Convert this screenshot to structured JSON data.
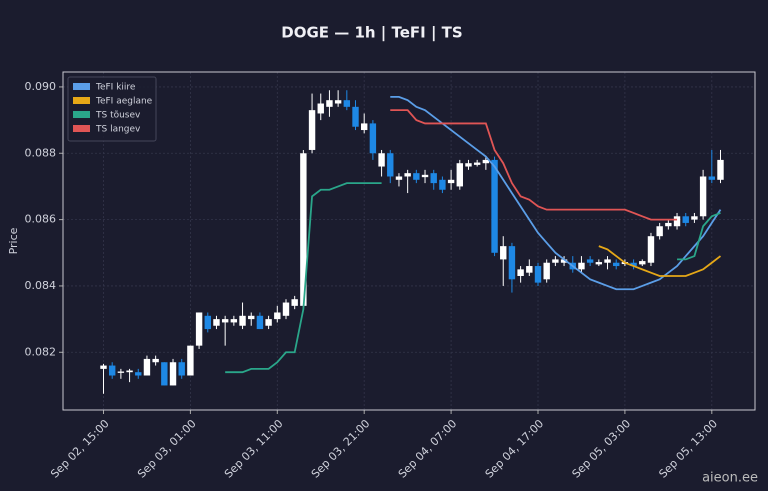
{
  "chart_data": {
    "type": "candlestick",
    "title": "DOGE — 1h  |  TeFI  |  TS",
    "y_label": "Price",
    "watermark": "aieon.ee",
    "grid": true,
    "legend_position": "upper left",
    "up_color": "#ffffff",
    "down_color": "#1e88e5",
    "ylim": [
      0.08026,
      0.09045
    ],
    "yticks": [
      0.082,
      0.084,
      0.086,
      0.088,
      {
        "value": 0.09,
        "label": "0.090"
      }
    ],
    "categories": [
      "Sep 02, 15:00",
      null,
      null,
      null,
      null,
      null,
      null,
      null,
      null,
      null,
      "Sep 03, 01:00",
      null,
      null,
      null,
      null,
      null,
      null,
      null,
      null,
      null,
      "Sep 03, 11:00",
      null,
      null,
      null,
      null,
      null,
      null,
      null,
      null,
      null,
      "Sep 03, 21:00",
      null,
      null,
      null,
      null,
      null,
      null,
      null,
      null,
      null,
      "Sep 04, 07:00",
      null,
      null,
      null,
      null,
      null,
      null,
      null,
      null,
      null,
      "Sep 04, 17:00",
      null,
      null,
      null,
      null,
      null,
      null,
      null,
      null,
      null,
      "Sep 05, 03:00",
      null,
      null,
      null,
      null,
      null,
      null,
      null,
      null,
      null,
      "Sep 05, 13:00",
      null
    ],
    "open": [
      0.0815,
      0.0816,
      0.08138,
      0.0814,
      0.0814,
      0.0813,
      0.0817,
      0.0817,
      0.081,
      0.0817,
      0.0813,
      0.0822,
      0.0831,
      0.0828,
      0.0829,
      0.0829,
      0.0828,
      0.083,
      0.0831,
      0.0828,
      0.083,
      0.0831,
      0.0834,
      0.0834,
      0.0881,
      0.0892,
      0.0894,
      0.0895,
      0.0896,
      0.0894,
      0.0887,
      0.0889,
      0.0876,
      0.088,
      0.0872,
      0.0873,
      0.0874,
      0.08728,
      0.0874,
      0.0872,
      0.0871,
      0.087,
      0.0876,
      0.08765,
      0.0877,
      0.0878,
      0.0848,
      0.0852,
      0.0843,
      0.0844,
      0.0846,
      0.0842,
      0.0847,
      0.0847,
      0.0847,
      0.0845,
      0.0848,
      0.08465,
      0.0847,
      0.0847,
      0.08466,
      0.0847,
      0.08465,
      0.0847,
      0.0855,
      0.0858,
      0.0858,
      0.0861,
      0.086,
      0.0861,
      0.0873,
      0.0872
    ],
    "high": [
      0.08165,
      0.0817,
      0.0815,
      0.0815,
      0.0815,
      0.0819,
      0.0819,
      0.0817,
      0.0818,
      0.0818,
      0.0822,
      0.0832,
      0.0832,
      0.0831,
      0.0831,
      0.0831,
      0.0835,
      0.0832,
      0.0832,
      0.0831,
      0.0834,
      0.0836,
      0.0837,
      0.0881,
      0.0898,
      0.0898,
      0.0899,
      0.0899,
      0.0899,
      0.0896,
      0.0892,
      0.089,
      0.0881,
      0.0881,
      0.0874,
      0.0875,
      0.0875,
      0.0875,
      0.0875,
      0.0873,
      0.0875,
      0.0878,
      0.0878,
      0.0878,
      0.0879,
      0.0879,
      0.0855,
      0.0853,
      0.0846,
      0.0848,
      0.0847,
      0.0848,
      0.0849,
      0.0849,
      0.0849,
      0.0849,
      0.0849,
      0.0848,
      0.0849,
      0.0848,
      0.0848,
      0.0848,
      0.0848,
      0.0856,
      0.0859,
      0.086,
      0.0862,
      0.0862,
      0.0862,
      0.0875,
      0.0881,
      0.0881
    ],
    "low": [
      0.08075,
      0.0812,
      0.0812,
      0.0811,
      0.0812,
      0.0813,
      0.0816,
      0.081,
      0.081,
      0.0812,
      0.0813,
      0.0821,
      0.0826,
      0.0827,
      0.0822,
      0.0828,
      0.0827,
      0.0828,
      0.0827,
      0.0827,
      0.0829,
      0.083,
      0.0833,
      0.0833,
      0.088,
      0.089,
      0.0891,
      0.0894,
      0.0893,
      0.0887,
      0.0886,
      0.0878,
      0.0873,
      0.0871,
      0.087,
      0.0868,
      0.0871,
      0.0871,
      0.0869,
      0.0868,
      0.0869,
      0.0869,
      0.0875,
      0.0876,
      0.0875,
      0.0849,
      0.084,
      0.0838,
      0.0841,
      0.0843,
      0.084,
      0.0841,
      0.0846,
      0.0846,
      0.0844,
      0.0844,
      0.0846,
      0.0846,
      0.0845,
      0.0845,
      0.0846,
      0.0845,
      0.0846,
      0.0846,
      0.0854,
      0.0857,
      0.0857,
      0.0858,
      0.0859,
      0.086,
      0.0871,
      0.0871
    ],
    "close": [
      0.0816,
      0.0813,
      0.08142,
      0.08145,
      0.0813,
      0.0818,
      0.0818,
      0.081,
      0.0817,
      0.0813,
      0.0822,
      0.0832,
      0.0827,
      0.083,
      0.083,
      0.083,
      0.0831,
      0.0831,
      0.0827,
      0.083,
      0.0832,
      0.0835,
      0.0836,
      0.088,
      0.0893,
      0.0895,
      0.0896,
      0.0896,
      0.0894,
      0.0888,
      0.0889,
      0.088,
      0.088,
      0.0873,
      0.0873,
      0.0874,
      0.0872,
      0.08735,
      0.0871,
      0.0869,
      0.0872,
      0.0877,
      0.0877,
      0.08772,
      0.0878,
      0.085,
      0.0852,
      0.0842,
      0.0845,
      0.0846,
      0.0841,
      0.0847,
      0.0848,
      0.0848,
      0.0845,
      0.0847,
      0.0847,
      0.08472,
      0.0848,
      0.0846,
      0.08472,
      0.0846,
      0.08475,
      0.0855,
      0.0858,
      0.0859,
      0.0861,
      0.0859,
      0.0861,
      0.0873,
      0.0872,
      0.0878
    ],
    "series": [
      {
        "name": "TeFI kiire",
        "color": "#5b9ee8",
        "values": [
          null,
          null,
          null,
          null,
          null,
          null,
          null,
          null,
          null,
          null,
          null,
          null,
          null,
          null,
          null,
          null,
          null,
          null,
          null,
          null,
          null,
          null,
          null,
          null,
          null,
          null,
          null,
          null,
          null,
          null,
          null,
          null,
          null,
          0.0897,
          0.0897,
          0.0896,
          0.0894,
          0.0893,
          0.0891,
          0.0889,
          0.0887,
          0.0885,
          0.0883,
          0.0881,
          0.0879,
          0.0876,
          0.0872,
          0.0868,
          0.0864,
          0.086,
          0.0856,
          0.0853,
          0.085,
          0.0848,
          0.0846,
          0.0844,
          0.0842,
          0.0841,
          0.084,
          0.0839,
          0.0839,
          0.0839,
          0.084,
          0.0841,
          0.0842,
          0.0844,
          0.0846,
          0.0849,
          0.0852,
          0.0855,
          0.0859,
          0.0863
        ]
      },
      {
        "name": "TeFI aeglane",
        "color": "#e6a817",
        "values": [
          null,
          null,
          null,
          null,
          null,
          null,
          null,
          null,
          null,
          null,
          null,
          null,
          null,
          null,
          null,
          null,
          null,
          null,
          null,
          null,
          null,
          null,
          null,
          null,
          null,
          null,
          null,
          null,
          null,
          null,
          null,
          null,
          null,
          null,
          null,
          null,
          null,
          null,
          null,
          null,
          null,
          null,
          null,
          null,
          null,
          null,
          null,
          null,
          null,
          null,
          null,
          null,
          null,
          null,
          null,
          null,
          null,
          0.0852,
          0.0851,
          0.0849,
          0.0847,
          0.0846,
          0.0845,
          0.0844,
          0.0843,
          0.0843,
          0.0843,
          0.0843,
          0.0844,
          0.0845,
          0.0847,
          0.0849
        ]
      },
      {
        "name": "TS tõusev",
        "color": "#2aa68a",
        "values": [
          null,
          null,
          null,
          null,
          null,
          null,
          null,
          null,
          null,
          null,
          null,
          null,
          null,
          null,
          0.0814,
          0.0814,
          0.0814,
          0.0815,
          0.0815,
          0.0815,
          0.0817,
          0.082,
          0.082,
          0.0833,
          0.0867,
          0.0869,
          0.0869,
          0.087,
          0.0871,
          0.0871,
          0.0871,
          0.0871,
          0.0871,
          null,
          null,
          null,
          null,
          null,
          null,
          null,
          null,
          null,
          null,
          null,
          null,
          null,
          null,
          null,
          null,
          null,
          null,
          null,
          null,
          null,
          null,
          null,
          null,
          null,
          null,
          null,
          null,
          null,
          null,
          null,
          null,
          null,
          0.0848,
          0.0848,
          0.0849,
          0.0858,
          0.0861,
          0.0862
        ]
      },
      {
        "name": "TS langev",
        "color": "#e05555",
        "values": [
          null,
          null,
          null,
          null,
          null,
          null,
          null,
          null,
          null,
          null,
          null,
          null,
          null,
          null,
          null,
          null,
          null,
          null,
          null,
          null,
          null,
          null,
          null,
          null,
          null,
          null,
          null,
          null,
          null,
          null,
          null,
          null,
          null,
          0.0893,
          0.0893,
          0.0893,
          0.089,
          0.0889,
          0.0889,
          0.0889,
          0.0889,
          0.0889,
          0.0889,
          0.0889,
          0.0889,
          0.0881,
          0.0877,
          0.0871,
          0.0867,
          0.0866,
          0.0864,
          0.0863,
          0.0863,
          0.0863,
          0.0863,
          0.0863,
          0.0863,
          0.0863,
          0.0863,
          0.0863,
          0.0863,
          0.0862,
          0.0861,
          0.086,
          0.086,
          0.086,
          0.086,
          null,
          null,
          null,
          null,
          null
        ]
      }
    ]
  }
}
